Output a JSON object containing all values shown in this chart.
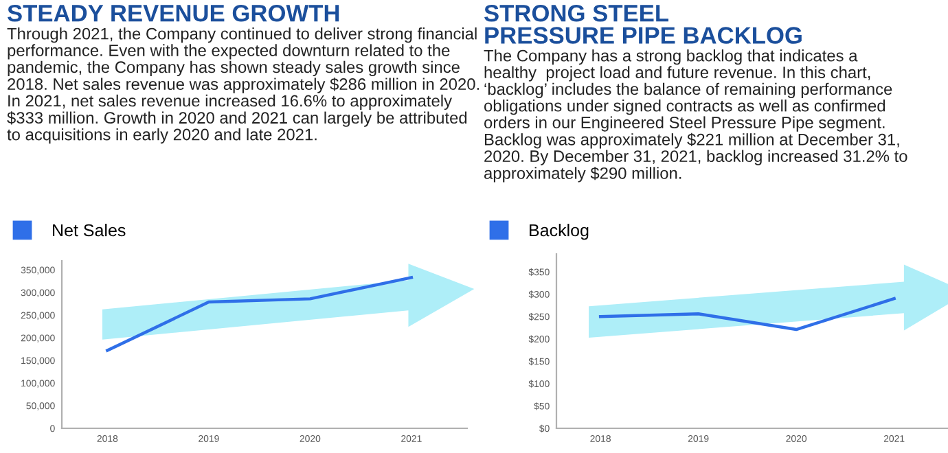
{
  "chart_data": [
    {
      "type": "line",
      "title": "STEADY REVENUE GROWTH",
      "subtitle": "Through 2021, the Company continued to deliver strong financial\nperformance. Even with the expected downturn related to the\npandemic, the Company has shown steady sales growth since\n2018. Net sales revenue was approximately $286 million in 2020.\nIn 2021, net sales revenue increased 16.6% to approximately\n$333 million. Growth in 2020 and 2021 can largely be attributed\nto acquisitions in early 2020 and late 2021.",
      "categories": [
        "2018",
        "2019",
        "2020",
        "2021"
      ],
      "series": [
        {
          "name": "Net Sales",
          "color": "#2f6fe8",
          "values": [
            172000,
            279000,
            286000,
            333000
          ]
        }
      ],
      "ylim": [
        0,
        370000
      ],
      "yticks": [
        0,
        {
          "value": 50000,
          "label": "50,000"
        },
        {
          "value": 100000,
          "label": "100,000"
        },
        {
          "value": 150000,
          "label": "150,000"
        },
        {
          "value": 200000,
          "label": "200,000"
        },
        {
          "value": 250000,
          "label": "250,000"
        },
        {
          "value": 300000,
          "label": "300,000"
        },
        {
          "value": 350000,
          "label": "350,000"
        }
      ],
      "grid": false,
      "legend": "top left",
      "marker": "none",
      "line_style": "solid"
    },
    {
      "type": "line",
      "title": "STRONG STEEL\nPRESSURE PIPE BACKLOG",
      "subtitle": "The Company has a strong backlog that indicates a\nhealthy  project load and future revenue. In this chart,\n‘backlog’ includes the balance of remaining performance\nobligations under signed contracts as well as confirmed\norders in our Engineered Steel Pressure Pipe segment.\nBacklog was approximately $221 million at December 31,\n2020. By December 31, 2021, backlog increased 31.2% to\napproximately $290 million.",
      "categories": [
        "2018",
        "2019",
        "2020",
        "2021"
      ],
      "series": [
        {
          "name": "Backlog",
          "color": "#2f6fe8",
          "values": [
            250,
            256,
            221,
            290
          ]
        }
      ],
      "ylim": [
        0,
        390
      ],
      "yticks": [
        {
          "value": 0,
          "label": "$0"
        },
        {
          "value": 50,
          "label": "$50"
        },
        {
          "value": 100,
          "label": "$100"
        },
        {
          "value": 150,
          "label": "$150"
        },
        {
          "value": 200,
          "label": "$200"
        },
        {
          "value": 250,
          "label": "$250"
        },
        {
          "value": 300,
          "label": "$300"
        },
        {
          "value": 350,
          "label": "$350"
        }
      ],
      "grid": false,
      "legend": "top left",
      "marker": "none",
      "line_style": "solid"
    }
  ]
}
